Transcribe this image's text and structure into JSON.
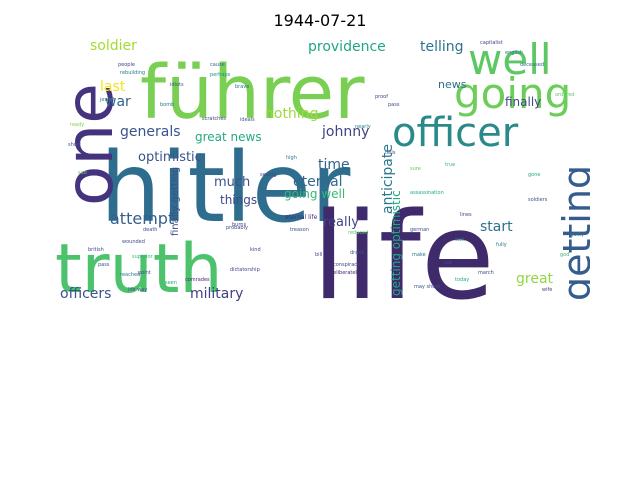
{
  "title": "1944-07-21",
  "words": [
    {
      "text": "hitler",
      "color": "#2f6d8e"
    },
    {
      "text": "life",
      "color": "#3f2a6b"
    },
    {
      "text": "truth",
      "color": "#4cc26c"
    },
    {
      "text": "führer",
      "color": "#78cf52"
    },
    {
      "text": "one",
      "color": "#46337e"
    },
    {
      "text": "officer",
      "color": "#2a8a8a"
    },
    {
      "text": "going",
      "color": "#6cce59"
    },
    {
      "text": "well",
      "color": "#5cc863"
    },
    {
      "text": "getting",
      "color": "#365c8d"
    },
    {
      "text": "attempt",
      "color": "#355f8d"
    },
    {
      "text": "providence",
      "color": "#21a685"
    },
    {
      "text": "telling",
      "color": "#2c738e"
    },
    {
      "text": "soldier",
      "color": "#a5db36"
    },
    {
      "text": "officers",
      "color": "#3b528b"
    },
    {
      "text": "military",
      "color": "#433e85"
    },
    {
      "text": "generals",
      "color": "#3a548c"
    },
    {
      "text": "johnny",
      "color": "#424086"
    },
    {
      "text": "great news",
      "color": "#24aa83"
    },
    {
      "text": "eternal",
      "color": "#31688e"
    },
    {
      "text": "nothing",
      "color": "#9fda3a"
    },
    {
      "text": "optimistic",
      "color": "#3a538b"
    },
    {
      "text": "anticipate",
      "color": "#2a788e"
    },
    {
      "text": "getting optimistic",
      "color": "#22a884"
    },
    {
      "text": "war",
      "color": "#32658e"
    },
    {
      "text": "last",
      "color": "#f2e51d"
    },
    {
      "text": "much",
      "color": "#3b528b"
    },
    {
      "text": "time",
      "color": "#33638d"
    },
    {
      "text": "going well",
      "color": "#35b779"
    },
    {
      "text": "things",
      "color": "#3e4989"
    },
    {
      "text": "really",
      "color": "#414487"
    },
    {
      "text": "start",
      "color": "#2c718e"
    },
    {
      "text": "great",
      "color": "#90d743"
    },
    {
      "text": "finally",
      "color": "#3e4a89"
    },
    {
      "text": "finally getting",
      "color": "#3d4e8a"
    },
    {
      "text": "news",
      "color": "#2e6f8e"
    },
    {
      "text": "eternal life",
      "color": "#472d7b"
    },
    {
      "text": "bill",
      "color": "#3b528b"
    },
    {
      "text": "english",
      "color": "#2a788e"
    },
    {
      "text": "capitalist",
      "color": "#3e4989"
    },
    {
      "text": "deceased",
      "color": "#31688e"
    },
    {
      "text": "german",
      "color": "#3b528b"
    },
    {
      "text": "high",
      "color": "#2a788e"
    },
    {
      "text": "wounded",
      "color": "#3e4989"
    },
    {
      "text": "comrades",
      "color": "#482475"
    },
    {
      "text": "assassination",
      "color": "#22a884"
    },
    {
      "text": "dictatorship",
      "color": "#414487"
    },
    {
      "text": "sick",
      "color": "#2a788e"
    },
    {
      "text": "rat",
      "color": "#3b528b"
    },
    {
      "text": "march",
      "color": "#414487"
    },
    {
      "text": "people",
      "color": "#3e4989"
    },
    {
      "text": "jewish",
      "color": "#2a788e"
    },
    {
      "text": "british",
      "color": "#414487"
    },
    {
      "text": "superior",
      "color": "#35b779"
    },
    {
      "text": "pass",
      "color": "#3b528b"
    },
    {
      "text": "deliberately",
      "color": "#482475"
    },
    {
      "text": "probably",
      "color": "#414487"
    },
    {
      "text": "reached",
      "color": "#2a788e"
    },
    {
      "text": "seen",
      "color": "#22a884"
    },
    {
      "text": "life way",
      "color": "#3b528b"
    },
    {
      "text": "death",
      "color": "#3e4989"
    },
    {
      "text": "cause",
      "color": "#31688e"
    },
    {
      "text": "idiots",
      "color": "#3b528b"
    },
    {
      "text": "make",
      "color": "#2a788e"
    },
    {
      "text": "kind",
      "color": "#414487"
    },
    {
      "text": "perhaps",
      "color": "#21918c"
    },
    {
      "text": "pass",
      "color": "#3e4989"
    },
    {
      "text": "may shoot",
      "color": "#3b528b"
    },
    {
      "text": "today",
      "color": "#22a884"
    },
    {
      "text": "conspiracy",
      "color": "#414487"
    },
    {
      "text": "true",
      "color": "#35b779"
    },
    {
      "text": "reduced",
      "color": "#5ec962"
    },
    {
      "text": "ideals",
      "color": "#3b528b"
    },
    {
      "text": "brave",
      "color": "#2a788e"
    },
    {
      "text": "sad",
      "color": "#5ec962"
    },
    {
      "text": "short",
      "color": "#3b528b"
    },
    {
      "text": "burns",
      "color": "#414487"
    },
    {
      "text": "tells",
      "color": "#3b528b"
    },
    {
      "text": "guilty",
      "color": "#2a788e"
    },
    {
      "text": "point",
      "color": "#3e4989"
    },
    {
      "text": "scratches",
      "color": "#414487"
    },
    {
      "text": "rebuilding",
      "color": "#2a788e"
    },
    {
      "text": "treason",
      "color": "#3b528b"
    },
    {
      "text": "god",
      "color": "#35b779"
    },
    {
      "text": "nearly",
      "color": "#2a788e"
    },
    {
      "text": "seeing",
      "color": "#3e4989"
    },
    {
      "text": "ordered",
      "color": "#5ec962"
    },
    {
      "text": "ready",
      "color": "#7ad151"
    },
    {
      "text": "proof",
      "color": "#414487"
    },
    {
      "text": "drank",
      "color": "#3b528b"
    },
    {
      "text": "bomb",
      "color": "#2a788e"
    },
    {
      "text": "gone",
      "color": "#22a884"
    },
    {
      "text": "lines",
      "color": "#3e4989"
    },
    {
      "text": "wife",
      "color": "#414487"
    },
    {
      "text": "soldiers",
      "color": "#3b528b"
    },
    {
      "text": "sure",
      "color": "#5ec962"
    },
    {
      "text": "fully",
      "color": "#2a788e"
    }
  ]
}
